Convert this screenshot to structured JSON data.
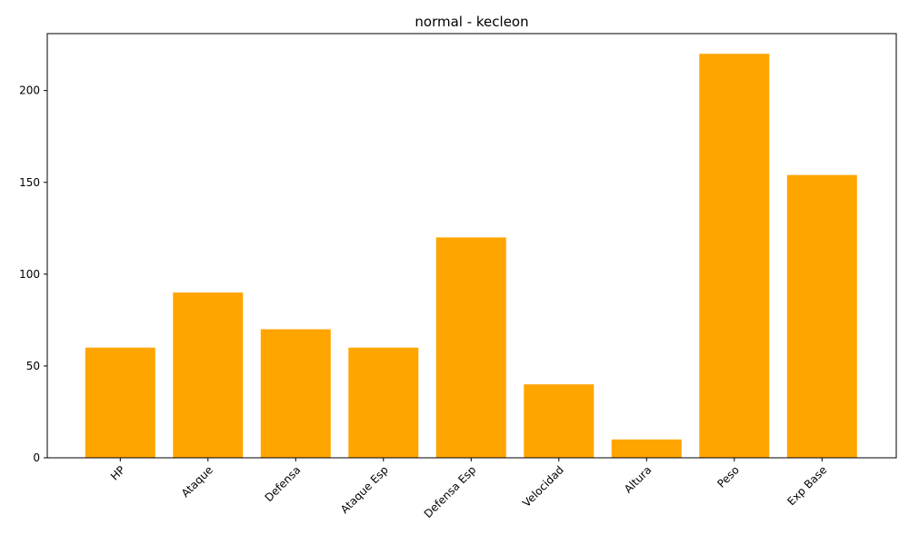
{
  "chart_data": {
    "type": "bar",
    "title": "normal - kecleon",
    "xlabel": "",
    "ylabel": "",
    "categories": [
      "HP",
      "Ataque",
      "Defensa",
      "Ataque Esp",
      "Defensa Esp",
      "Velocidad",
      "Altura",
      "Peso",
      "Exp Base"
    ],
    "values": [
      60,
      90,
      70,
      60,
      120,
      40,
      10,
      220,
      154
    ],
    "ylim": [
      0,
      231
    ],
    "yticks": [
      0,
      50,
      100,
      150,
      200
    ],
    "grid": false,
    "legend": "none",
    "bar_color": "#FFA500"
  }
}
